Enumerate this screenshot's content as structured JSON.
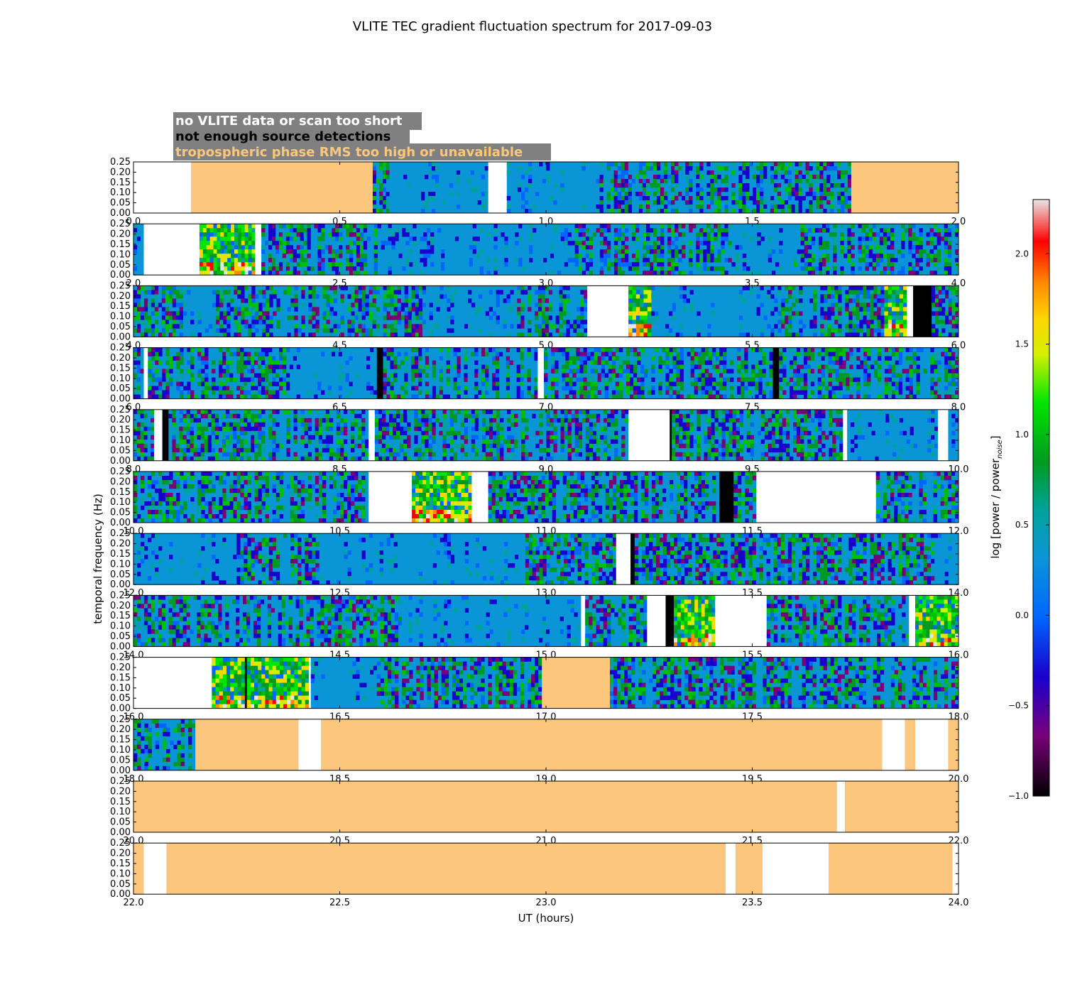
{
  "title": "VLITE TEC gradient fluctuation spectrum for 2017-09-03",
  "legend_labels": {
    "no_data": "no VLITE data or scan too short",
    "no_detections": "not enough source detections",
    "tropo": "tropospheric phase RMS too high or unavailable"
  },
  "colors": {
    "legend_box": "#808080",
    "no_data_text": "#ffffff",
    "no_detections_text": "#000000",
    "tropo": "#fdc67d",
    "background_spectrum": "#0a96d6",
    "gap_no_data": "#ffffff",
    "gap_no_detections": "#000000"
  },
  "chart_data": {
    "type": "heatmap",
    "title": "VLITE TEC gradient fluctuation spectrum for 2017-09-03",
    "xlabel": "UT (hours)",
    "ylabel": "temporal frequency (Hz)",
    "colorbar_label": "log [power / power",
    "colorbar_label_sub": "noise",
    "colorbar_label_close": "]",
    "colorbar_range": [
      -1.0,
      2.3
    ],
    "colorbar_ticks": [
      "2.0",
      "1.5",
      "1.0",
      "0.5",
      "0.0",
      "−0.5",
      "−1.0"
    ],
    "colorbar_tick_values": [
      2.0,
      1.5,
      1.0,
      0.5,
      0.0,
      -0.5,
      -1.0
    ],
    "yticks": [
      "0.25",
      "0.20",
      "0.15",
      "0.10",
      "0.05",
      "0.00"
    ],
    "ylim": [
      0.0,
      0.25
    ],
    "panels": [
      {
        "xlim": [
          0,
          2
        ],
        "xticks": [
          "0.0",
          "0.5",
          "1.0",
          "1.5",
          "2.0"
        ],
        "segments": [
          [
            0,
            0.14,
            "nodata"
          ],
          [
            0.14,
            0.58,
            "tropo"
          ],
          [
            0.58,
            0.62,
            "active"
          ],
          [
            0.62,
            0.86,
            "quiet"
          ],
          [
            0.86,
            0.905,
            "nodata"
          ],
          [
            0.905,
            1.13,
            "quiet"
          ],
          [
            1.13,
            1.45,
            "active"
          ],
          [
            1.45,
            1.74,
            "active"
          ],
          [
            1.74,
            2.0,
            "tropo"
          ]
        ]
      },
      {
        "xlim": [
          2,
          4
        ],
        "xticks": [
          "2.0",
          "2.5",
          "3.0",
          "3.5",
          "4.0"
        ],
        "segments": [
          [
            2.0,
            2.025,
            "quiet"
          ],
          [
            2.025,
            2.16,
            "nodata"
          ],
          [
            2.16,
            2.295,
            "strong"
          ],
          [
            2.295,
            2.31,
            "nodata"
          ],
          [
            2.31,
            2.6,
            "active"
          ],
          [
            2.6,
            3.07,
            "quiet"
          ],
          [
            3.07,
            3.45,
            "active"
          ],
          [
            3.45,
            3.6,
            "quiet"
          ],
          [
            3.6,
            4.0,
            "active"
          ]
        ]
      },
      {
        "xlim": [
          4,
          6
        ],
        "xticks": [
          "4.0",
          "4.5",
          "5.0",
          "5.5",
          "6.0"
        ],
        "segments": [
          [
            4.0,
            4.12,
            "active"
          ],
          [
            4.12,
            4.2,
            "quiet"
          ],
          [
            4.2,
            4.7,
            "active"
          ],
          [
            4.7,
            4.93,
            "quiet"
          ],
          [
            4.93,
            5.1,
            "active"
          ],
          [
            5.1,
            5.2,
            "nodata"
          ],
          [
            5.2,
            5.255,
            "strong"
          ],
          [
            5.255,
            5.57,
            "quiet"
          ],
          [
            5.57,
            5.82,
            "active"
          ],
          [
            5.82,
            5.875,
            "strong"
          ],
          [
            5.875,
            5.89,
            "nodata"
          ],
          [
            5.89,
            5.935,
            "nodet"
          ],
          [
            5.935,
            6.0,
            "active"
          ]
        ]
      },
      {
        "xlim": [
          6,
          8
        ],
        "xticks": [
          "6.0",
          "6.5",
          "7.0",
          "7.5",
          "8.0"
        ],
        "segments": [
          [
            6.0,
            6.025,
            "active"
          ],
          [
            6.025,
            6.035,
            "nodata"
          ],
          [
            6.035,
            6.37,
            "active"
          ],
          [
            6.37,
            6.59,
            "quiet"
          ],
          [
            6.59,
            6.605,
            "nodet"
          ],
          [
            6.605,
            6.98,
            "active"
          ],
          [
            6.98,
            6.995,
            "nodata"
          ],
          [
            6.995,
            7.55,
            "active"
          ],
          [
            7.55,
            7.565,
            "nodet"
          ],
          [
            7.565,
            8.0,
            "active"
          ]
        ]
      },
      {
        "xlim": [
          8,
          10
        ],
        "xticks": [
          "8.0",
          "8.5",
          "9.0",
          "9.5",
          "10.0"
        ],
        "segments": [
          [
            8.0,
            8.05,
            "active"
          ],
          [
            8.05,
            8.07,
            "nodata"
          ],
          [
            8.07,
            8.085,
            "nodet"
          ],
          [
            8.085,
            8.57,
            "active"
          ],
          [
            8.57,
            8.585,
            "nodata"
          ],
          [
            8.585,
            9.2,
            "active"
          ],
          [
            9.2,
            9.3,
            "nodata"
          ],
          [
            9.3,
            9.305,
            "nodet"
          ],
          [
            9.305,
            9.72,
            "active"
          ],
          [
            9.72,
            9.73,
            "nodata"
          ],
          [
            9.73,
            9.95,
            "quiet"
          ],
          [
            9.95,
            9.975,
            "nodata"
          ],
          [
            9.975,
            10.0,
            "quiet"
          ]
        ]
      },
      {
        "xlim": [
          10,
          12
        ],
        "xticks": [
          "10.0",
          "10.5",
          "11.0",
          "11.5",
          "12.0"
        ],
        "segments": [
          [
            10.0,
            10.57,
            "active"
          ],
          [
            10.57,
            10.675,
            "nodata"
          ],
          [
            10.675,
            10.82,
            "strong"
          ],
          [
            10.82,
            10.86,
            "nodata"
          ],
          [
            10.86,
            11.42,
            "active"
          ],
          [
            11.42,
            11.455,
            "nodet"
          ],
          [
            11.455,
            11.51,
            "active"
          ],
          [
            11.51,
            11.8,
            "nodata"
          ],
          [
            11.8,
            12.0,
            "active"
          ]
        ]
      },
      {
        "xlim": [
          12,
          14
        ],
        "xticks": [
          "12.0",
          "12.5",
          "13.0",
          "13.5",
          "14.0"
        ],
        "segments": [
          [
            12.0,
            12.25,
            "quiet"
          ],
          [
            12.25,
            12.45,
            "active"
          ],
          [
            12.45,
            12.95,
            "quiet"
          ],
          [
            12.95,
            13.17,
            "active"
          ],
          [
            13.17,
            13.205,
            "nodata"
          ],
          [
            13.205,
            13.215,
            "nodet"
          ],
          [
            13.215,
            13.5,
            "active"
          ],
          [
            13.5,
            13.95,
            "active"
          ],
          [
            13.95,
            14.0,
            "quiet"
          ]
        ]
      },
      {
        "xlim": [
          14,
          16
        ],
        "xticks": [
          "14.0",
          "14.5",
          "15.0",
          "15.5",
          "16.0"
        ],
        "segments": [
          [
            14.0,
            14.65,
            "active"
          ],
          [
            14.65,
            15.085,
            "quiet"
          ],
          [
            15.085,
            15.095,
            "nodata"
          ],
          [
            15.095,
            15.245,
            "active"
          ],
          [
            15.245,
            15.29,
            "nodata"
          ],
          [
            15.29,
            15.31,
            "nodet"
          ],
          [
            15.31,
            15.41,
            "strong"
          ],
          [
            15.41,
            15.535,
            "nodata"
          ],
          [
            15.535,
            15.88,
            "active"
          ],
          [
            15.88,
            15.895,
            "nodata"
          ],
          [
            15.895,
            16.0,
            "strong"
          ],
          [
            16.0,
            16.0,
            "nodata"
          ]
        ]
      },
      {
        "xlim": [
          16,
          18
        ],
        "xticks": [
          "16.0",
          "16.5",
          "17.0",
          "17.5",
          "18.0"
        ],
        "segments": [
          [
            16.0,
            16.19,
            "nodata"
          ],
          [
            16.19,
            16.27,
            "strong"
          ],
          [
            16.27,
            16.275,
            "nodet"
          ],
          [
            16.275,
            16.425,
            "strong"
          ],
          [
            16.425,
            16.43,
            "nodata"
          ],
          [
            16.43,
            16.59,
            "quiet"
          ],
          [
            16.59,
            16.99,
            "active"
          ],
          [
            16.99,
            17.155,
            "tropo"
          ],
          [
            17.155,
            18.0,
            "active"
          ]
        ]
      },
      {
        "xlim": [
          18,
          20
        ],
        "xticks": [
          "18.0",
          "18.5",
          "19.0",
          "19.5",
          "20.0"
        ],
        "segments": [
          [
            18.0,
            18.15,
            "active"
          ],
          [
            18.15,
            18.4,
            "tropo"
          ],
          [
            18.4,
            18.455,
            "nodata"
          ],
          [
            18.455,
            19.815,
            "tropo"
          ],
          [
            19.815,
            19.87,
            "nodata"
          ],
          [
            19.87,
            19.895,
            "tropo"
          ],
          [
            19.895,
            19.975,
            "nodata"
          ],
          [
            19.975,
            20.0,
            "tropo"
          ]
        ]
      },
      {
        "xlim": [
          20,
          22
        ],
        "xticks": [
          "20.0",
          "20.5",
          "21.0",
          "21.5",
          "22.0"
        ],
        "segments": [
          [
            20.0,
            21.705,
            "tropo"
          ],
          [
            21.705,
            21.725,
            "nodata"
          ],
          [
            21.725,
            22.0,
            "tropo"
          ]
        ]
      },
      {
        "xlim": [
          22,
          24
        ],
        "xticks": [
          "22.0",
          "22.5",
          "23.0",
          "23.5",
          "24.0"
        ],
        "segments": [
          [
            22.0,
            22.025,
            "tropo"
          ],
          [
            22.025,
            22.08,
            "nodata"
          ],
          [
            22.08,
            23.435,
            "tropo"
          ],
          [
            23.435,
            23.46,
            "nodata"
          ],
          [
            23.46,
            23.525,
            "tropo"
          ],
          [
            23.525,
            23.685,
            "nodata"
          ],
          [
            23.685,
            23.985,
            "tropo"
          ],
          [
            23.985,
            24.0,
            "nodata"
          ]
        ]
      }
    ]
  }
}
